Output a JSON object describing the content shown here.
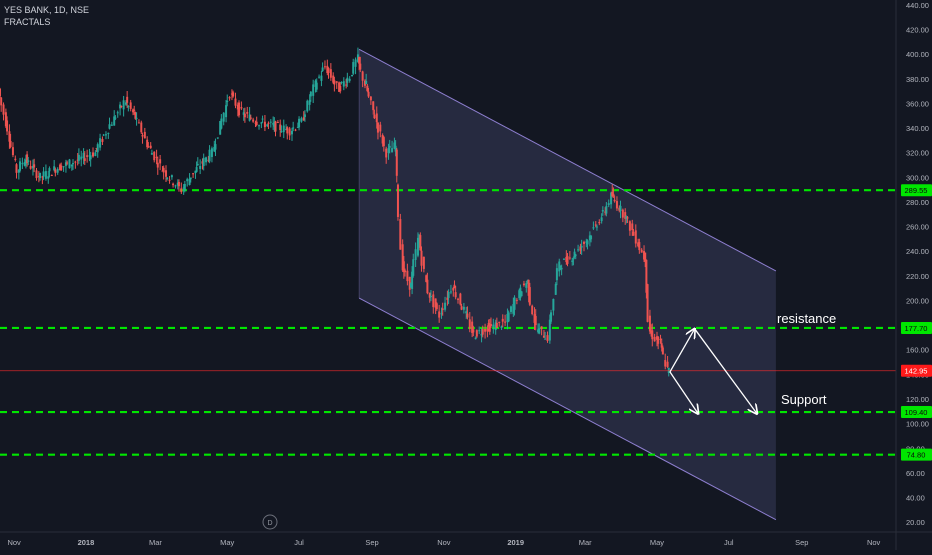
{
  "header": {
    "symbol_line": "YES BANK, 1D, NSE",
    "indicator": "FRACTALS"
  },
  "colors": {
    "background": "#131722",
    "up": "#26a69a",
    "down": "#ef5350",
    "level_line": "#00e600",
    "level_badge": "#00e600",
    "price_line": "#ff2a2a",
    "price_badge": "#ff1a1a",
    "channel_fill": "#2a2e45",
    "channel_edge": "#8e7fd0",
    "arrow": "#ffffff",
    "axis_text": "#b2b5be"
  },
  "chart_data": {
    "type": "candlestick",
    "title": "YES BANK, 1D, NSE",
    "indicator": "FRACTALS",
    "y_range": [
      12,
      444
    ],
    "y_ticks": [
      "20.00",
      "40.00",
      "60.00",
      "80.00",
      "100.00",
      "120.00",
      "140.00",
      "160.00",
      "180.00",
      "200.00",
      "220.00",
      "240.00",
      "260.00",
      "280.00",
      "300.00",
      "320.00",
      "340.00",
      "360.00",
      "380.00",
      "400.00",
      "420.00",
      "440.00"
    ],
    "x_range": [
      "2017-10-20",
      "2019-11-20"
    ],
    "x_ticks": [
      {
        "label": "Nov",
        "date": "2017-11-01"
      },
      {
        "label": "2018",
        "date": "2018-01-01"
      },
      {
        "label": "Mar",
        "date": "2018-03-01"
      },
      {
        "label": "May",
        "date": "2018-05-01"
      },
      {
        "label": "Jul",
        "date": "2018-07-01"
      },
      {
        "label": "Sep",
        "date": "2018-09-01"
      },
      {
        "label": "Nov",
        "date": "2018-11-01"
      },
      {
        "label": "2019",
        "date": "2019-01-01"
      },
      {
        "label": "Mar",
        "date": "2019-03-01"
      },
      {
        "label": "May",
        "date": "2019-05-01"
      },
      {
        "label": "Jul",
        "date": "2019-07-01"
      },
      {
        "label": "Sep",
        "date": "2019-09-01"
      },
      {
        "label": "Nov",
        "date": "2019-11-01"
      }
    ],
    "price_path": [
      [
        "2017-10-20",
        372
      ],
      [
        "2017-10-28",
        340
      ],
      [
        "2017-11-05",
        305
      ],
      [
        "2017-11-12",
        315
      ],
      [
        "2017-11-25",
        300
      ],
      [
        "2017-12-10",
        308
      ],
      [
        "2017-12-25",
        313
      ],
      [
        "2018-01-10",
        320
      ],
      [
        "2018-01-25",
        345
      ],
      [
        "2018-02-05",
        362
      ],
      [
        "2018-02-12",
        352
      ],
      [
        "2018-02-25",
        325
      ],
      [
        "2018-03-10",
        305
      ],
      [
        "2018-03-25",
        290
      ],
      [
        "2018-04-05",
        305
      ],
      [
        "2018-04-20",
        320
      ],
      [
        "2018-05-05",
        368
      ],
      [
        "2018-05-15",
        352
      ],
      [
        "2018-05-30",
        345
      ],
      [
        "2018-06-10",
        342
      ],
      [
        "2018-06-25",
        338
      ],
      [
        "2018-07-05",
        345
      ],
      [
        "2018-07-15",
        372
      ],
      [
        "2018-07-25",
        390
      ],
      [
        "2018-08-05",
        372
      ],
      [
        "2018-08-15",
        382
      ],
      [
        "2018-08-21",
        396
      ],
      [
        "2018-08-28",
        375
      ],
      [
        "2018-09-05",
        350
      ],
      [
        "2018-09-15",
        320
      ],
      [
        "2018-09-22",
        325
      ],
      [
        "2018-09-28",
        228
      ],
      [
        "2018-10-05",
        212
      ],
      [
        "2018-10-12",
        250
      ],
      [
        "2018-10-20",
        208
      ],
      [
        "2018-10-30",
        188
      ],
      [
        "2018-11-10",
        212
      ],
      [
        "2018-11-20",
        192
      ],
      [
        "2018-11-28",
        172
      ],
      [
        "2018-12-10",
        178
      ],
      [
        "2018-12-25",
        182
      ],
      [
        "2019-01-05",
        205
      ],
      [
        "2019-01-12",
        215
      ],
      [
        "2019-01-20",
        178
      ],
      [
        "2019-01-30",
        170
      ],
      [
        "2019-02-08",
        228
      ],
      [
        "2019-02-20",
        236
      ],
      [
        "2019-03-05",
        250
      ],
      [
        "2019-03-18",
        270
      ],
      [
        "2019-03-25",
        285
      ],
      [
        "2019-04-05",
        270
      ],
      [
        "2019-04-15",
        250
      ],
      [
        "2019-04-22",
        235
      ],
      [
        "2019-04-26",
        175
      ],
      [
        "2019-05-05",
        165
      ],
      [
        "2019-05-12",
        143
      ]
    ],
    "channel": {
      "label": "descending channel",
      "upper": [
        [
          "2018-08-21",
          404
        ],
        [
          "2019-08-10",
          224
        ]
      ],
      "lower": [
        [
          "2018-08-21",
          202
        ],
        [
          "2019-08-10",
          22
        ]
      ]
    },
    "horizontal_levels": [
      {
        "value": 289.55,
        "label": "289.55"
      },
      {
        "value": 177.7,
        "label": "177.70",
        "annotation": "resistance"
      },
      {
        "value": 109.4,
        "label": "109.40",
        "annotation": "Support"
      },
      {
        "value": 74.8,
        "label": "74.80"
      }
    ],
    "last_price": {
      "value": 142.95,
      "label": "142.95"
    },
    "projection_arrows": [
      [
        [
          "2019-05-12",
          142
        ],
        [
          "2019-06-05",
          108
        ]
      ],
      [
        [
          "2019-05-12",
          142
        ],
        [
          "2019-06-02",
          177
        ]
      ],
      [
        [
          "2019-06-02",
          177
        ],
        [
          "2019-07-25",
          108
        ]
      ]
    ],
    "grid": false,
    "logo_letter": "D"
  }
}
